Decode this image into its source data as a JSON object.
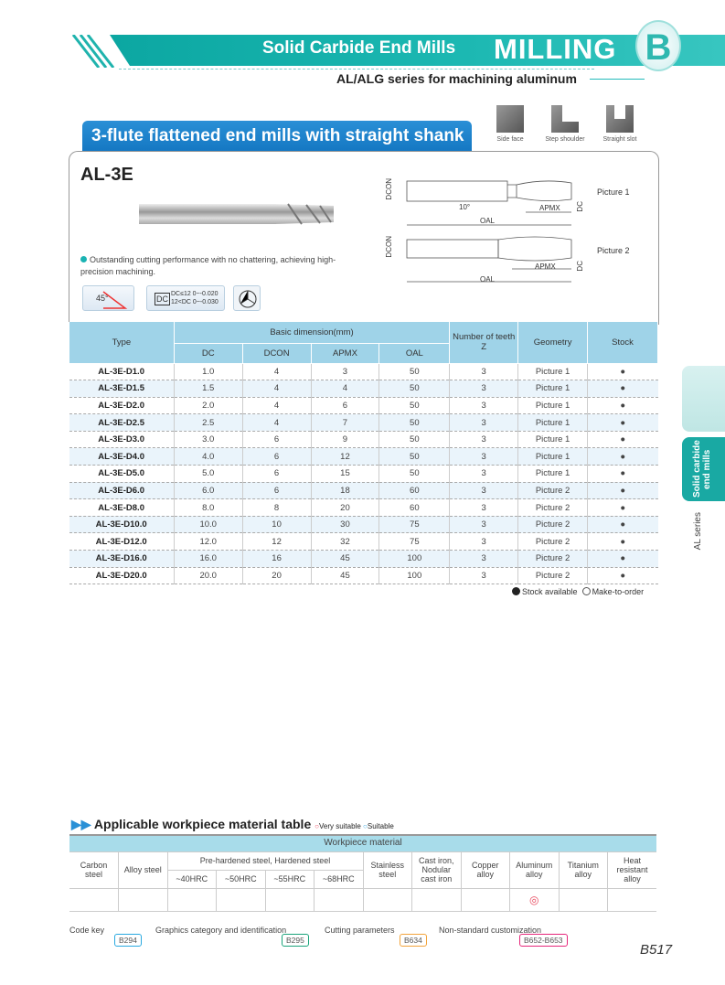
{
  "header": {
    "section_title": "Solid Carbide End Mills",
    "category": "MILLING",
    "chapter_letter": "B",
    "subtitle": "AL/ALG series for machining aluminum"
  },
  "product": {
    "tab_title": "3-flute flattened end mills with straight shank",
    "operations": [
      {
        "label": "Side face",
        "icon": "side-face-icon"
      },
      {
        "label": "Step shoulder",
        "icon": "step-shoulder-icon"
      },
      {
        "label": "Straight slot",
        "icon": "straight-slot-icon"
      }
    ],
    "model": "AL-3E",
    "feature": "Outstanding cutting performance with no chattering, achieving high-precision machining.",
    "badges": {
      "angle": "45°",
      "dc_label": "DC",
      "tol1": "DC≤12  0~-0.020",
      "tol2": "12<DC  0~-0.030"
    },
    "drawing": {
      "dcon": "DCON",
      "dc": "DC",
      "apmx": "APMX",
      "oal": "OAL",
      "angle": "10°",
      "pic1": "Picture 1",
      "pic2": "Picture 2"
    }
  },
  "spec_table": {
    "headers": {
      "type": "Type",
      "basic": "Basic dimension(mm)",
      "dc": "DC",
      "dcon": "DCON",
      "apmx": "APMX",
      "oal": "OAL",
      "teeth": "Number of teeth",
      "z": "Z",
      "geometry": "Geometry",
      "stock": "Stock"
    },
    "rows": [
      [
        "AL-3E-D1.0",
        "1.0",
        "4",
        "3",
        "50",
        "3",
        "Picture 1",
        "●"
      ],
      [
        "AL-3E-D1.5",
        "1.5",
        "4",
        "4",
        "50",
        "3",
        "Picture 1",
        "●"
      ],
      [
        "AL-3E-D2.0",
        "2.0",
        "4",
        "6",
        "50",
        "3",
        "Picture 1",
        "●"
      ],
      [
        "AL-3E-D2.5",
        "2.5",
        "4",
        "7",
        "50",
        "3",
        "Picture 1",
        "●"
      ],
      [
        "AL-3E-D3.0",
        "3.0",
        "6",
        "9",
        "50",
        "3",
        "Picture 1",
        "●"
      ],
      [
        "AL-3E-D4.0",
        "4.0",
        "6",
        "12",
        "50",
        "3",
        "Picture 1",
        "●"
      ],
      [
        "AL-3E-D5.0",
        "5.0",
        "6",
        "15",
        "50",
        "3",
        "Picture 1",
        "●"
      ],
      [
        "AL-3E-D6.0",
        "6.0",
        "6",
        "18",
        "60",
        "3",
        "Picture 2",
        "●"
      ],
      [
        "AL-3E-D8.0",
        "8.0",
        "8",
        "20",
        "60",
        "3",
        "Picture 2",
        "●"
      ],
      [
        "AL-3E-D10.0",
        "10.0",
        "10",
        "30",
        "75",
        "3",
        "Picture 2",
        "●"
      ],
      [
        "AL-3E-D12.0",
        "12.0",
        "12",
        "32",
        "75",
        "3",
        "Picture 2",
        "●"
      ],
      [
        "AL-3E-D16.0",
        "16.0",
        "16",
        "45",
        "100",
        "3",
        "Picture 2",
        "●"
      ],
      [
        "AL-3E-D20.0",
        "20.0",
        "20",
        "45",
        "100",
        "3",
        "Picture 2",
        "●"
      ]
    ],
    "legend": {
      "stock": "Stock available",
      "order": "Make-to-order"
    }
  },
  "side_tabs": {
    "active": "Solid carbide end mills",
    "series": "AL series"
  },
  "material_table": {
    "title": "Applicable workpiece material table",
    "very_suitable": "Very suitable",
    "suitable": "Suitable",
    "header": "Workpiece material",
    "columns": {
      "carbon": "Carbon steel",
      "alloy": "Alloy steel",
      "hardened": "Pre-hardened steel, Hardened steel",
      "h40": "~40HRC",
      "h50": "~50HRC",
      "h55": "~55HRC",
      "h68": "~68HRC",
      "stainless": "Stainless steel",
      "castiron": "Cast iron, Nodular cast iron",
      "copper": "Copper alloy",
      "aluminum": "Aluminum alloy",
      "titanium": "Titanium alloy",
      "heat": "Heat resistant alloy"
    },
    "aluminum_mark": "◎",
    "colors": {
      "very_suitable": "#e84a5f",
      "suitable": "#3aa7e0"
    }
  },
  "footer": {
    "links": [
      {
        "label": "Code key",
        "ref": "B294",
        "color": "#29a9e0"
      },
      {
        "label": "Graphics category and identification",
        "ref": "B295",
        "color": "#1aa37a"
      },
      {
        "label": "Cutting parameters",
        "ref": "B634",
        "color": "#f2a33a"
      },
      {
        "label": "Non-standard customization",
        "ref": "B652-B653",
        "color": "#e6267a"
      }
    ],
    "page": "B517"
  }
}
